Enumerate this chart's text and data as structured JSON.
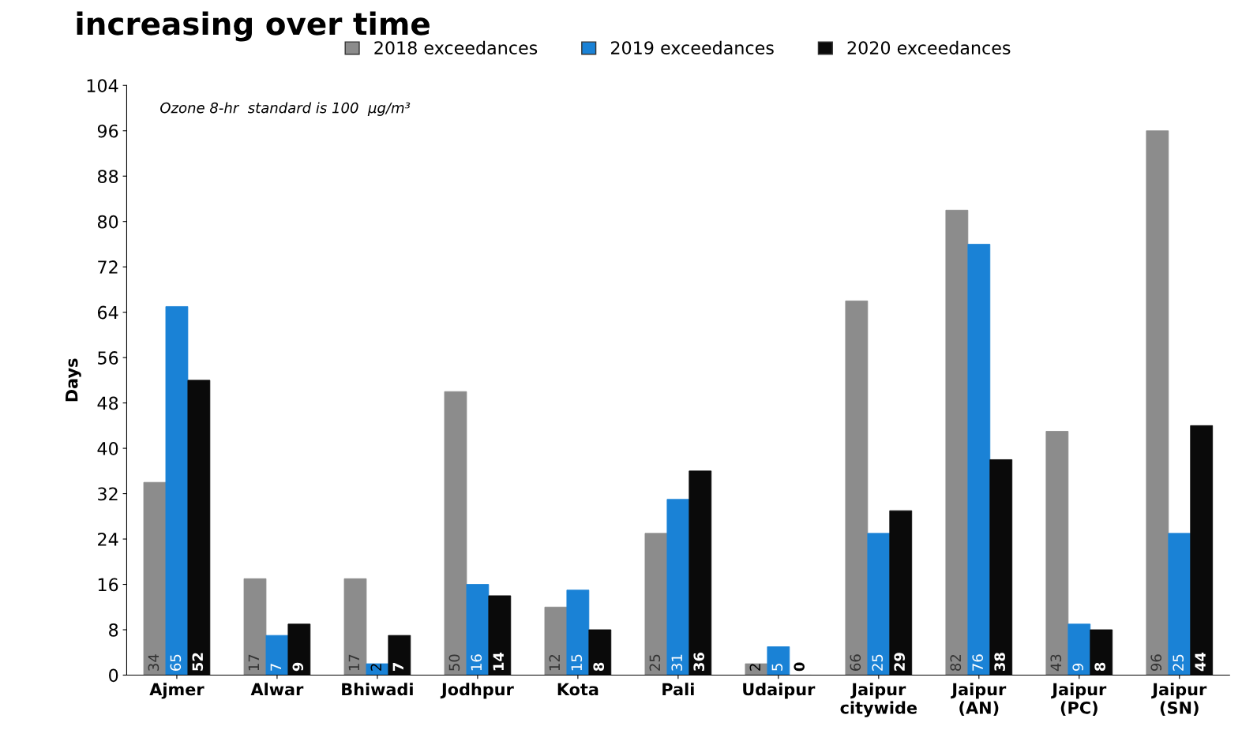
{
  "chart_data": {
    "type": "bar",
    "title": "increasing over time",
    "ylabel": "Days",
    "categories": [
      "Ajmer",
      "Alwar",
      "Bhiwadi",
      "Jodhpur",
      "Kota",
      "Pali",
      "Udaipur",
      "Jaipur\ncitywide",
      "Jaipur\n(AN)",
      "Jaipur\n(PC)",
      "Jaipur\n(SN)"
    ],
    "series": [
      {
        "name": "2018 exceedances",
        "color": "#8c8c8c",
        "values": [
          34,
          17,
          17,
          50,
          12,
          25,
          2,
          66,
          82,
          43,
          96
        ]
      },
      {
        "name": "2019 exceedances",
        "color": "#1a82d6",
        "values": [
          65,
          7,
          2,
          16,
          15,
          31,
          5,
          25,
          76,
          9,
          25
        ]
      },
      {
        "name": "2020 exceedances",
        "color": "#0a0a0a",
        "values": [
          52,
          9,
          7,
          14,
          8,
          36,
          0,
          29,
          38,
          8,
          44
        ]
      }
    ],
    "ylim": [
      0,
      104
    ],
    "yticks": [
      0,
      8,
      16,
      24,
      32,
      40,
      48,
      56,
      64,
      72,
      80,
      88,
      96,
      104
    ],
    "annotations": [
      "Ozone 8-hr  standard is 100  µg/m³"
    ],
    "data_labels": true,
    "legend": "top",
    "grid": false
  }
}
